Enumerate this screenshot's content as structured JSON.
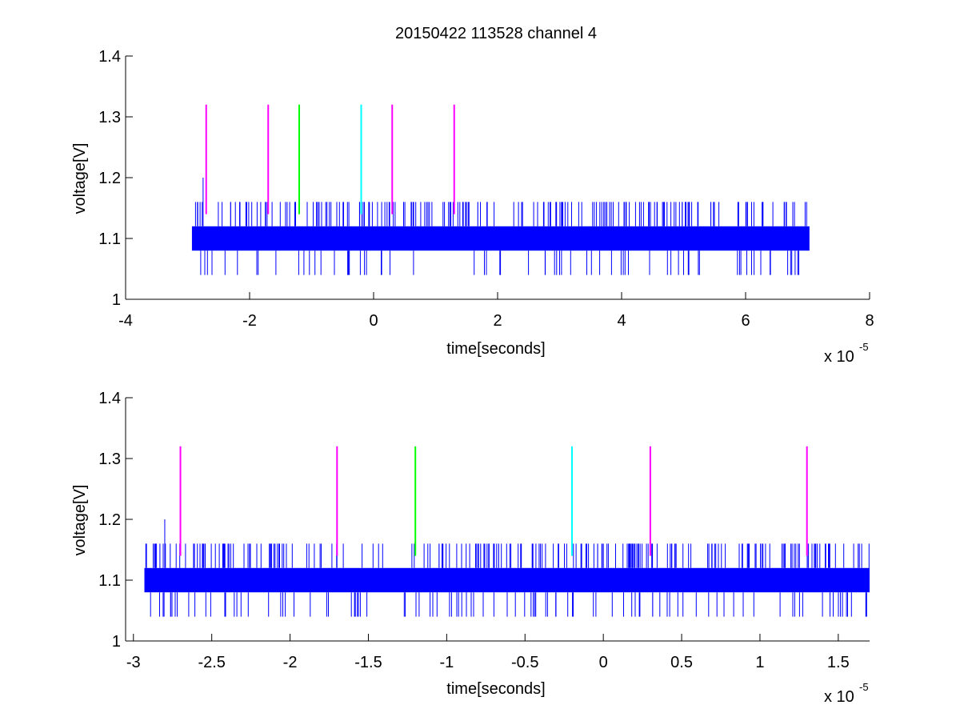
{
  "chart_data": [
    {
      "type": "line",
      "title": "20150422 113528 channel 4",
      "xlabel": "time[seconds]",
      "ylabel": "voltage[V]",
      "x_multiplier": "x 10",
      "x_exponent": "-5",
      "xlim": [
        -4,
        8
      ],
      "ylim": [
        1,
        1.4
      ],
      "xticks": [
        -4,
        -2,
        0,
        2,
        4,
        6,
        8
      ],
      "xtick_labels": [
        "-4",
        "-2",
        "0",
        "2",
        "4",
        "6",
        "8"
      ],
      "yticks": [
        1,
        1.1,
        1.2,
        1.3,
        1.4
      ],
      "ytick_labels": [
        "1",
        "1.1",
        "1.2",
        "1.3",
        "1.4"
      ],
      "grid": false,
      "signal": {
        "color": "#0000ff",
        "x_range": [
          -2.93,
          7.03
        ],
        "band": [
          1.08,
          1.12
        ],
        "levels": [
          1.04,
          1.16
        ],
        "peak": {
          "x": -2.75,
          "y": 1.2
        }
      },
      "markers": [
        {
          "x": -2.7,
          "color": "#ff00ff",
          "y": [
            1.14,
            1.32
          ]
        },
        {
          "x": -1.7,
          "color": "#ff00ff",
          "y": [
            1.14,
            1.32
          ]
        },
        {
          "x": -1.2,
          "color": "#00ff00",
          "y": [
            1.14,
            1.32
          ]
        },
        {
          "x": -0.2,
          "color": "#00ffff",
          "y": [
            1.14,
            1.32
          ]
        },
        {
          "x": 0.3,
          "color": "#ff00ff",
          "y": [
            1.14,
            1.32
          ]
        },
        {
          "x": 1.3,
          "color": "#ff00ff",
          "y": [
            1.14,
            1.32
          ]
        }
      ]
    },
    {
      "type": "line",
      "title": "",
      "xlabel": "time[seconds]",
      "ylabel": "voltage[V]",
      "x_multiplier": "x 10",
      "x_exponent": "-5",
      "xlim": [
        -3.05,
        1.7
      ],
      "ylim": [
        1,
        1.4
      ],
      "xticks": [
        -3,
        -2.5,
        -2,
        -1.5,
        -1,
        -0.5,
        0,
        0.5,
        1,
        1.5
      ],
      "xtick_labels": [
        "-3",
        "-2.5",
        "-2",
        "-1.5",
        "-1",
        "-0.5",
        "0",
        "0.5",
        "1",
        "1.5"
      ],
      "yticks": [
        1,
        1.1,
        1.2,
        1.3,
        1.4
      ],
      "ytick_labels": [
        "1",
        "1.1",
        "1.2",
        "1.3",
        "1.4"
      ],
      "grid": false,
      "signal": {
        "color": "#0000ff",
        "x_range": [
          -2.93,
          1.7
        ],
        "band": [
          1.08,
          1.12
        ],
        "levels": [
          1.04,
          1.16
        ],
        "peak": {
          "x": -2.8,
          "y": 1.2
        }
      },
      "markers": [
        {
          "x": -2.7,
          "color": "#ff00ff",
          "y": [
            1.14,
            1.32
          ]
        },
        {
          "x": -1.7,
          "color": "#ff00ff",
          "y": [
            1.14,
            1.32
          ]
        },
        {
          "x": -1.2,
          "color": "#00ff00",
          "y": [
            1.14,
            1.32
          ]
        },
        {
          "x": -0.2,
          "color": "#00ffff",
          "y": [
            1.14,
            1.32
          ]
        },
        {
          "x": 0.3,
          "color": "#ff00ff",
          "y": [
            1.14,
            1.32
          ]
        },
        {
          "x": 1.3,
          "color": "#ff00ff",
          "y": [
            1.14,
            1.32
          ]
        }
      ]
    }
  ]
}
